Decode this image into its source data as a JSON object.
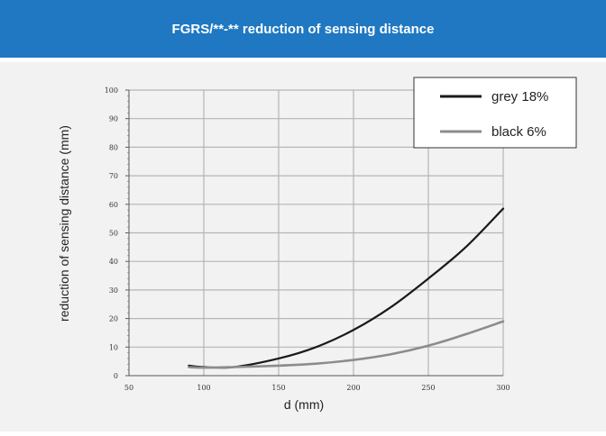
{
  "header": {
    "title": "FGRS/**-** reduction of sensing distance"
  },
  "colors": {
    "header_bg": "#1f78c1",
    "panel_bg": "#f2f2f2",
    "grid": "#b5b5b5",
    "grey_series": "#1a1a1a",
    "black_series": "#8c8c8c"
  },
  "chart_data": {
    "type": "line",
    "title": "",
    "xlabel": "d (mm)",
    "ylabel": "reduction of sensing distance (mm)",
    "xlim": [
      50,
      300
    ],
    "ylim": [
      0,
      100
    ],
    "x_ticks": [
      50,
      100,
      150,
      200,
      250,
      300
    ],
    "y_ticks": [
      0,
      10,
      20,
      30,
      40,
      50,
      60,
      70,
      80,
      90,
      100
    ],
    "grid": true,
    "legend_position": "top-right",
    "series": [
      {
        "name": "grey 18%",
        "x": [
          90,
          100,
          120,
          150,
          175,
          200,
          225,
          250,
          275,
          300
        ],
        "values": [
          3.5,
          3,
          3,
          6,
          10,
          16,
          24,
          34,
          45,
          58.5
        ]
      },
      {
        "name": "black 6%",
        "x": [
          90,
          100,
          120,
          150,
          175,
          200,
          225,
          250,
          275,
          300
        ],
        "values": [
          3,
          2.8,
          3,
          3.5,
          4.2,
          5.5,
          7.5,
          10.5,
          14.5,
          19
        ]
      }
    ]
  }
}
